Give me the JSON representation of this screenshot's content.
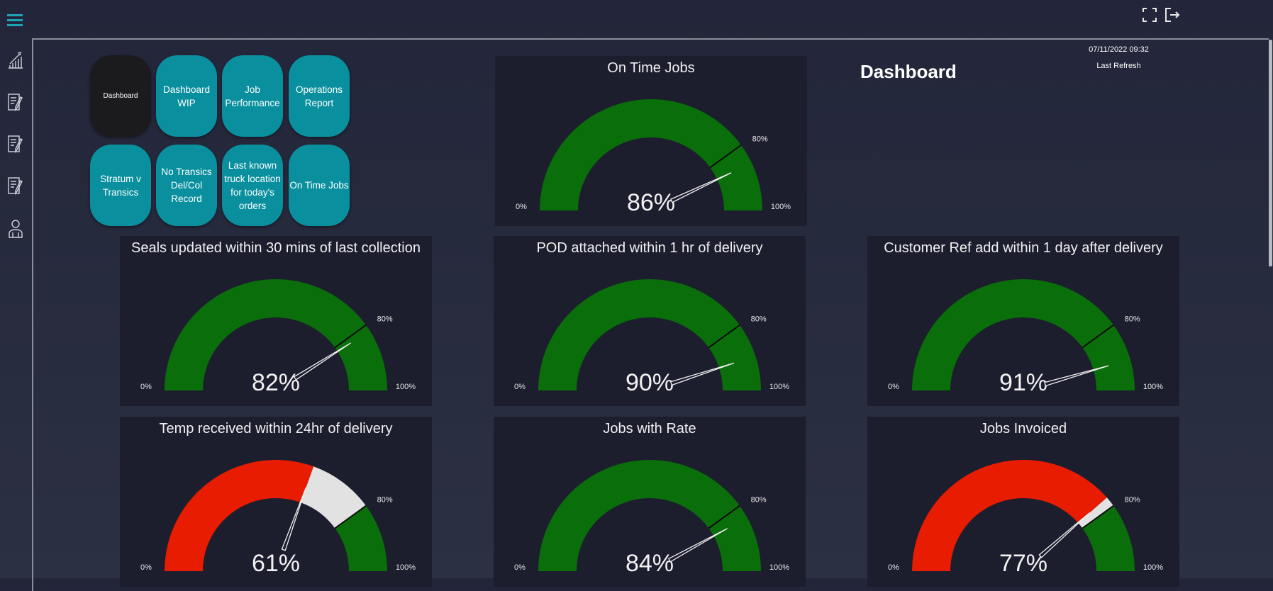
{
  "header": {
    "menu_icon": "hamburger-icon",
    "fullscreen_icon": "fullscreen-icon",
    "exit_icon": "sign-out-icon"
  },
  "sidebar": {
    "items": [
      {
        "icon": "growth-chart-icon"
      },
      {
        "icon": "document-edit-icon"
      },
      {
        "icon": "document-edit-icon"
      },
      {
        "icon": "document-edit-icon"
      },
      {
        "icon": "users-icon"
      }
    ]
  },
  "nav_buttons": [
    {
      "label": "Dashboard",
      "active": true
    },
    {
      "label": "Dashboard WIP"
    },
    {
      "label": "Job Performance"
    },
    {
      "label": "Operations Report"
    },
    {
      "label": "Stratum v Transics"
    },
    {
      "label": "No Transics Del/Col Record"
    },
    {
      "label": "Last known truck location for today's orders"
    },
    {
      "label": "On Time Jobs"
    }
  ],
  "page": {
    "title": "Dashboard",
    "last_refresh_time": "07/11/2022 09:32",
    "last_refresh_label": "Last Refresh"
  },
  "colors": {
    "good": "#0a6e0a",
    "bad": "#e81c00",
    "remainder": "#e2e2e2",
    "button": "#098f9e"
  },
  "chart_data": [
    {
      "type": "gauge",
      "title": "On Time Jobs",
      "value": 86,
      "target": 80,
      "min": 0,
      "max": 100,
      "value_label": "86%",
      "min_label": "0%",
      "max_label": "100%",
      "target_label": "80%"
    },
    {
      "type": "gauge",
      "title": "Seals updated within 30 mins of last collection",
      "value": 82,
      "target": 80,
      "min": 0,
      "max": 100,
      "value_label": "82%",
      "min_label": "0%",
      "max_label": "100%",
      "target_label": "80%"
    },
    {
      "type": "gauge",
      "title": "POD attached within 1 hr of delivery",
      "value": 90,
      "target": 80,
      "min": 0,
      "max": 100,
      "value_label": "90%",
      "min_label": "0%",
      "max_label": "100%",
      "target_label": "80%"
    },
    {
      "type": "gauge",
      "title": "Customer Ref add within 1 day after delivery",
      "value": 91,
      "target": 80,
      "min": 0,
      "max": 100,
      "value_label": "91%",
      "min_label": "0%",
      "max_label": "100%",
      "target_label": "80%"
    },
    {
      "type": "gauge",
      "title": "Temp received within 24hr of delivery",
      "value": 61,
      "target": 80,
      "min": 0,
      "max": 100,
      "value_label": "61%",
      "min_label": "0%",
      "max_label": "100%",
      "target_label": "80%"
    },
    {
      "type": "gauge",
      "title": "Jobs with Rate",
      "value": 84,
      "target": 80,
      "min": 0,
      "max": 100,
      "value_label": "84%",
      "min_label": "0%",
      "max_label": "100%",
      "target_label": "80%"
    },
    {
      "type": "gauge",
      "title": "Jobs Invoiced",
      "value": 77,
      "target": 80,
      "min": 0,
      "max": 100,
      "value_label": "77%",
      "min_label": "0%",
      "max_label": "100%",
      "target_label": "80%"
    }
  ]
}
